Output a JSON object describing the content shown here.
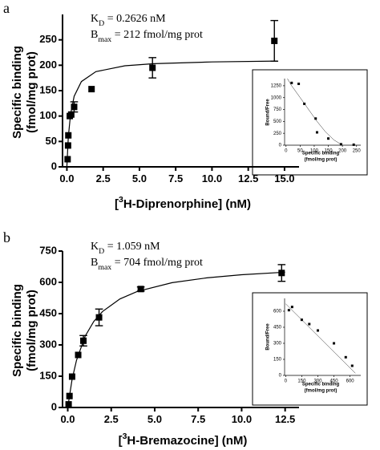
{
  "chart_data": [
    {
      "type": "scatter",
      "panel_label": "a",
      "annotations": [
        [
          {
            "text": "K"
          },
          {
            "text": "D",
            "sub": true
          },
          {
            "text": " = 0.2626 nM"
          }
        ],
        [
          {
            "text": "B"
          },
          {
            "text": "max",
            "sub": true
          },
          {
            "text": " = 212 fmol/mg prot"
          }
        ]
      ],
      "y_label": [
        "Specific binding",
        "(fmol/mg prot)"
      ],
      "x_label": [
        {
          "text": "["
        },
        {
          "text": "3",
          "sup": true
        },
        {
          "text": "H-Diprenorphine] (nM)"
        }
      ],
      "xlim": [
        -0.3,
        16
      ],
      "ylim": [
        0,
        300
      ],
      "xticks": [
        {
          "value": 0,
          "label": "0.0"
        },
        2.5,
        {
          "value": 5,
          "label": "5.0"
        },
        7.5,
        {
          "value": 10,
          "label": "10.0"
        },
        12.5,
        {
          "value": 15,
          "label": "15.0"
        }
      ],
      "yticks": [
        0,
        50,
        100,
        150,
        200,
        250
      ],
      "marker": "square",
      "color": "#000000",
      "series": [
        {
          "x": [
            0.05,
            0.08,
            0.1,
            0.2,
            0.3,
            0.5,
            1.7,
            5.9,
            14.3
          ],
          "values": [
            15,
            42,
            62,
            100,
            103,
            118,
            153,
            195,
            248
          ],
          "errors": [
            null,
            null,
            null,
            null,
            null,
            10,
            null,
            20,
            40
          ]
        }
      ],
      "fit": {
        "x": [
          0,
          0.1,
          0.25,
          0.5,
          1,
          2,
          4,
          6,
          10,
          14.5
        ],
        "values": [
          0,
          58.5,
          103.4,
          139.0,
          167.9,
          187.4,
          198.9,
          203.1,
          206.6,
          208.2
        ]
      }
    },
    {
      "type": "scatter",
      "y_label": [
        "Bound/Free"
      ],
      "x_label_lines": [
        "Specific binding",
        "(fmol/mg prot)"
      ],
      "xlim": [
        -5,
        265
      ],
      "ylim": [
        0,
        1400
      ],
      "xticks": [
        0,
        50,
        100,
        150,
        200,
        250
      ],
      "yticks": [
        0,
        250,
        500,
        750,
        1000,
        1250
      ],
      "marker": "square",
      "color": "#000000",
      "series": [
        {
          "x": [
            20,
            45,
            65,
            105,
            110,
            150,
            195,
            240
          ],
          "values": [
            1310,
            1290,
            870,
            560,
            270,
            140,
            20,
            10
          ]
        }
      ],
      "fit": {
        "x": [
          5,
          20,
          50,
          80,
          110,
          140,
          170,
          200
        ],
        "values": [
          1400,
          1250,
          1000,
          750,
          500,
          280,
          110,
          0
        ]
      }
    },
    {
      "type": "scatter",
      "panel_label": "b",
      "annotations": [
        [
          {
            "text": "K"
          },
          {
            "text": "D",
            "sub": true
          },
          {
            "text": " = 1.059 nM"
          }
        ],
        [
          {
            "text": "B"
          },
          {
            "text": "max",
            "sub": true
          },
          {
            "text": " = 704 fmol/mg prot"
          }
        ]
      ],
      "y_label": [
        "Specific binding",
        "(fmol/mg prot)"
      ],
      "x_label": [
        {
          "text": "["
        },
        {
          "text": "3",
          "sup": true
        },
        {
          "text": "H-Bremazocine] (nM)"
        }
      ],
      "xlim": [
        -0.3,
        13.3
      ],
      "ylim": [
        0,
        750
      ],
      "xticks": [
        {
          "value": 0,
          "label": "0.0"
        },
        2.5,
        {
          "value": 5,
          "label": "5.0"
        },
        7.5,
        {
          "value": 10,
          "label": "10.0"
        },
        12.5
      ],
      "yticks": [
        0,
        150,
        300,
        450,
        600,
        750
      ],
      "marker": "square",
      "color": "#000000",
      "series": [
        {
          "x": [
            0.05,
            0.1,
            0.25,
            0.6,
            0.9,
            1.8,
            4.2,
            12.3
          ],
          "values": [
            15,
            55,
            148,
            252,
            320,
            432,
            568,
            645
          ],
          "errors": [
            null,
            null,
            null,
            null,
            25,
            40,
            10,
            40
          ]
        }
      ],
      "fit": {
        "x": [
          0,
          0.25,
          0.5,
          1,
          1.5,
          2,
          3,
          4,
          6,
          8,
          10,
          12.5
        ],
        "values": [
          0,
          134.5,
          225.8,
          341.9,
          412.7,
          460.3,
          520.3,
          556.6,
          598.4,
          621.7,
          636.6,
          649.0
        ]
      }
    },
    {
      "type": "scatter",
      "y_label": [
        "Bound/Free"
      ],
      "x_label_lines": [
        "Specific binding",
        "(fmol/mg prot)"
      ],
      "xlim": [
        -10,
        700
      ],
      "ylim": [
        0,
        720
      ],
      "xticks": [
        0,
        150,
        300,
        450,
        600
      ],
      "yticks": [
        0,
        150,
        300,
        450,
        600
      ],
      "marker": "square",
      "color": "#000000",
      "series": [
        {
          "x": [
            30,
            60,
            150,
            220,
            300,
            450,
            560,
            620
          ],
          "values": [
            610,
            640,
            520,
            480,
            420,
            300,
            170,
            90
          ]
        }
      ],
      "fit": {
        "x": [
          0,
          650
        ],
        "values": [
          670,
          20
        ]
      }
    }
  ]
}
